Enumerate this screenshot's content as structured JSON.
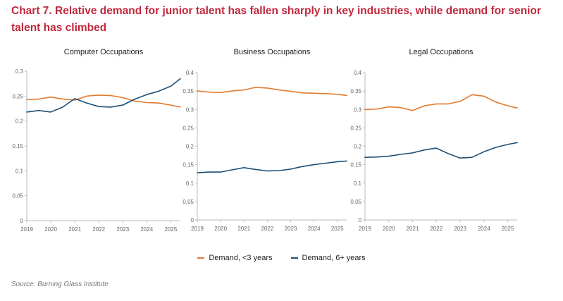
{
  "title": "Chart 7. Relative demand for junior talent has fallen sharply in key industries, while demand for senior talent has climbed",
  "colors": {
    "title": "#c0283c",
    "junior": "#e07b2e",
    "senior": "#1d4f76",
    "axis": "#bbbbbb"
  },
  "legend": [
    {
      "label": "Demand, <3 years",
      "color": "#e07b2e"
    },
    {
      "label": "Demand, 6+ years",
      "color": "#1d4f76"
    }
  ],
  "source": "Source: Burning Glass Institute",
  "chart_data": [
    {
      "type": "line",
      "title": "Computer Occupations",
      "xlabel": "",
      "ylabel": "",
      "xlim": [
        2019,
        2025.4
      ],
      "ylim": [
        0,
        0.3
      ],
      "yticks": [
        0,
        0.05,
        0.1,
        0.15,
        0.2,
        0.25,
        0.3
      ],
      "ytick_labels": [
        "0",
        "0.05",
        "0.1",
        "0.15",
        "0.2",
        "0.25",
        "0.3"
      ],
      "xticks": [
        2019,
        2020,
        2021,
        2022,
        2023,
        2024,
        2025
      ],
      "x": [
        2019,
        2019.5,
        2020,
        2020.5,
        2021,
        2021.5,
        2022,
        2022.5,
        2023,
        2023.5,
        2024,
        2024.5,
        2025,
        2025.4
      ],
      "series": [
        {
          "name": "Demand, <3 years",
          "values": [
            0.243,
            0.244,
            0.248,
            0.244,
            0.242,
            0.25,
            0.252,
            0.251,
            0.247,
            0.24,
            0.237,
            0.236,
            0.232,
            0.228
          ]
        },
        {
          "name": "Demand, 6+ years",
          "values": [
            0.218,
            0.221,
            0.218,
            0.228,
            0.245,
            0.236,
            0.229,
            0.228,
            0.232,
            0.244,
            0.253,
            0.26,
            0.27,
            0.285
          ]
        }
      ]
    },
    {
      "type": "line",
      "title": "Business Occupations",
      "xlabel": "",
      "ylabel": "",
      "xlim": [
        2019,
        2025.4
      ],
      "ylim": [
        0,
        0.4
      ],
      "yticks": [
        0,
        0.05,
        0.1,
        0.15,
        0.2,
        0.25,
        0.3,
        0.35,
        0.4
      ],
      "ytick_labels": [
        "0",
        "0.05",
        "0.1",
        "0.15",
        "0.2",
        "0.25",
        "0.3",
        "0.35",
        "0.4"
      ],
      "xticks": [
        2019,
        2020,
        2021,
        2022,
        2023,
        2024,
        2025
      ],
      "x": [
        2019,
        2019.5,
        2020,
        2020.5,
        2021,
        2021.5,
        2022,
        2022.5,
        2023,
        2023.5,
        2024,
        2024.5,
        2025,
        2025.4
      ],
      "series": [
        {
          "name": "Demand, <3 years",
          "values": [
            0.35,
            0.347,
            0.346,
            0.35,
            0.353,
            0.36,
            0.358,
            0.353,
            0.349,
            0.345,
            0.344,
            0.343,
            0.341,
            0.338
          ]
        },
        {
          "name": "Demand, 6+ years",
          "values": [
            0.128,
            0.13,
            0.13,
            0.136,
            0.142,
            0.137,
            0.133,
            0.134,
            0.138,
            0.145,
            0.15,
            0.154,
            0.158,
            0.16
          ]
        }
      ]
    },
    {
      "type": "line",
      "title": "Legal Occupations",
      "xlabel": "",
      "ylabel": "",
      "xlim": [
        2019,
        2025.4
      ],
      "ylim": [
        0,
        0.4
      ],
      "yticks": [
        0,
        0.05,
        0.1,
        0.15,
        0.2,
        0.25,
        0.3,
        0.35,
        0.4
      ],
      "ytick_labels": [
        "0",
        "0.05",
        "0.1",
        "0.15",
        "0.2",
        "0.25",
        "0.3",
        "0.35",
        "0.4"
      ],
      "xticks": [
        2019,
        2020,
        2021,
        2022,
        2023,
        2024,
        2025
      ],
      "x": [
        2019,
        2019.5,
        2020,
        2020.5,
        2021,
        2021.5,
        2022,
        2022.5,
        2023,
        2023.5,
        2024,
        2024.5,
        2025,
        2025.4
      ],
      "series": [
        {
          "name": "Demand, <3 years",
          "values": [
            0.3,
            0.301,
            0.307,
            0.305,
            0.297,
            0.31,
            0.315,
            0.315,
            0.322,
            0.34,
            0.336,
            0.32,
            0.31,
            0.304
          ]
        },
        {
          "name": "Demand, 6+ years",
          "values": [
            0.17,
            0.171,
            0.173,
            0.178,
            0.182,
            0.19,
            0.195,
            0.18,
            0.168,
            0.17,
            0.185,
            0.197,
            0.205,
            0.21
          ]
        }
      ]
    }
  ]
}
